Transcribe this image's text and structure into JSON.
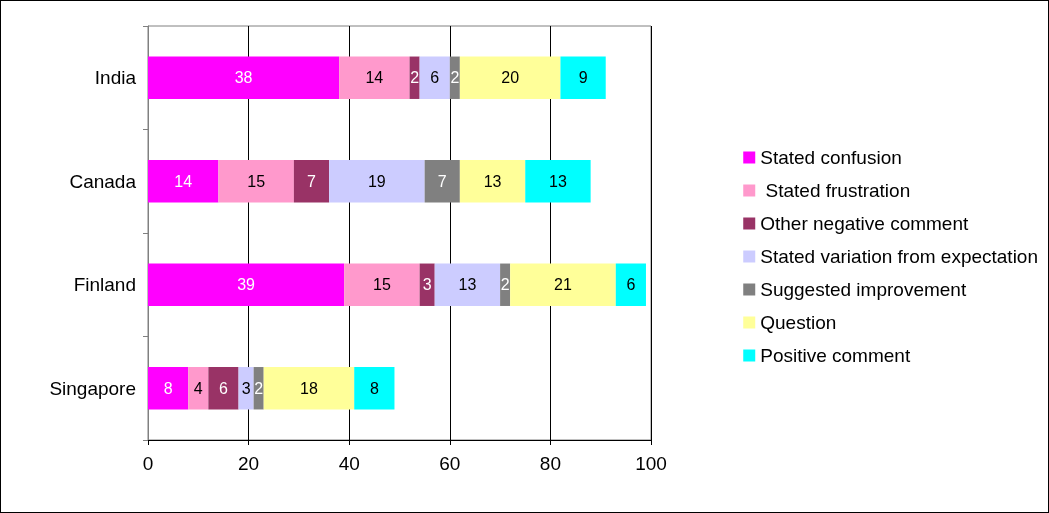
{
  "chart_data": {
    "type": "bar",
    "orientation": "horizontal",
    "stacked": true,
    "data_labels": true,
    "grid": "x",
    "legend": "right",
    "categories": [
      "India",
      "Canada",
      "Finland",
      "Singapore"
    ],
    "xlim": [
      0,
      100
    ],
    "xticks": [
      0,
      20,
      40,
      60,
      80,
      100
    ],
    "series": [
      {
        "name": "Stated confusion",
        "color": "#ff00ff",
        "values": [
          38,
          14,
          39,
          8
        ]
      },
      {
        "name": " Stated frustration",
        "color": "#ff99cc",
        "values": [
          14,
          15,
          15,
          4
        ]
      },
      {
        "name": "Other negative comment",
        "color": "#993366",
        "values": [
          2,
          7,
          3,
          6
        ]
      },
      {
        "name": "Stated variation from expectation",
        "color": "#ccccff",
        "values": [
          6,
          19,
          13,
          3
        ]
      },
      {
        "name": "Suggested improvement",
        "color": "#808080",
        "values": [
          2,
          7,
          2,
          2
        ]
      },
      {
        "name": "Question",
        "color": "#ffff99",
        "values": [
          20,
          13,
          21,
          18
        ]
      },
      {
        "name": "Positive comment",
        "color": "#00ffff",
        "values": [
          9,
          13,
          6,
          8
        ]
      }
    ]
  }
}
